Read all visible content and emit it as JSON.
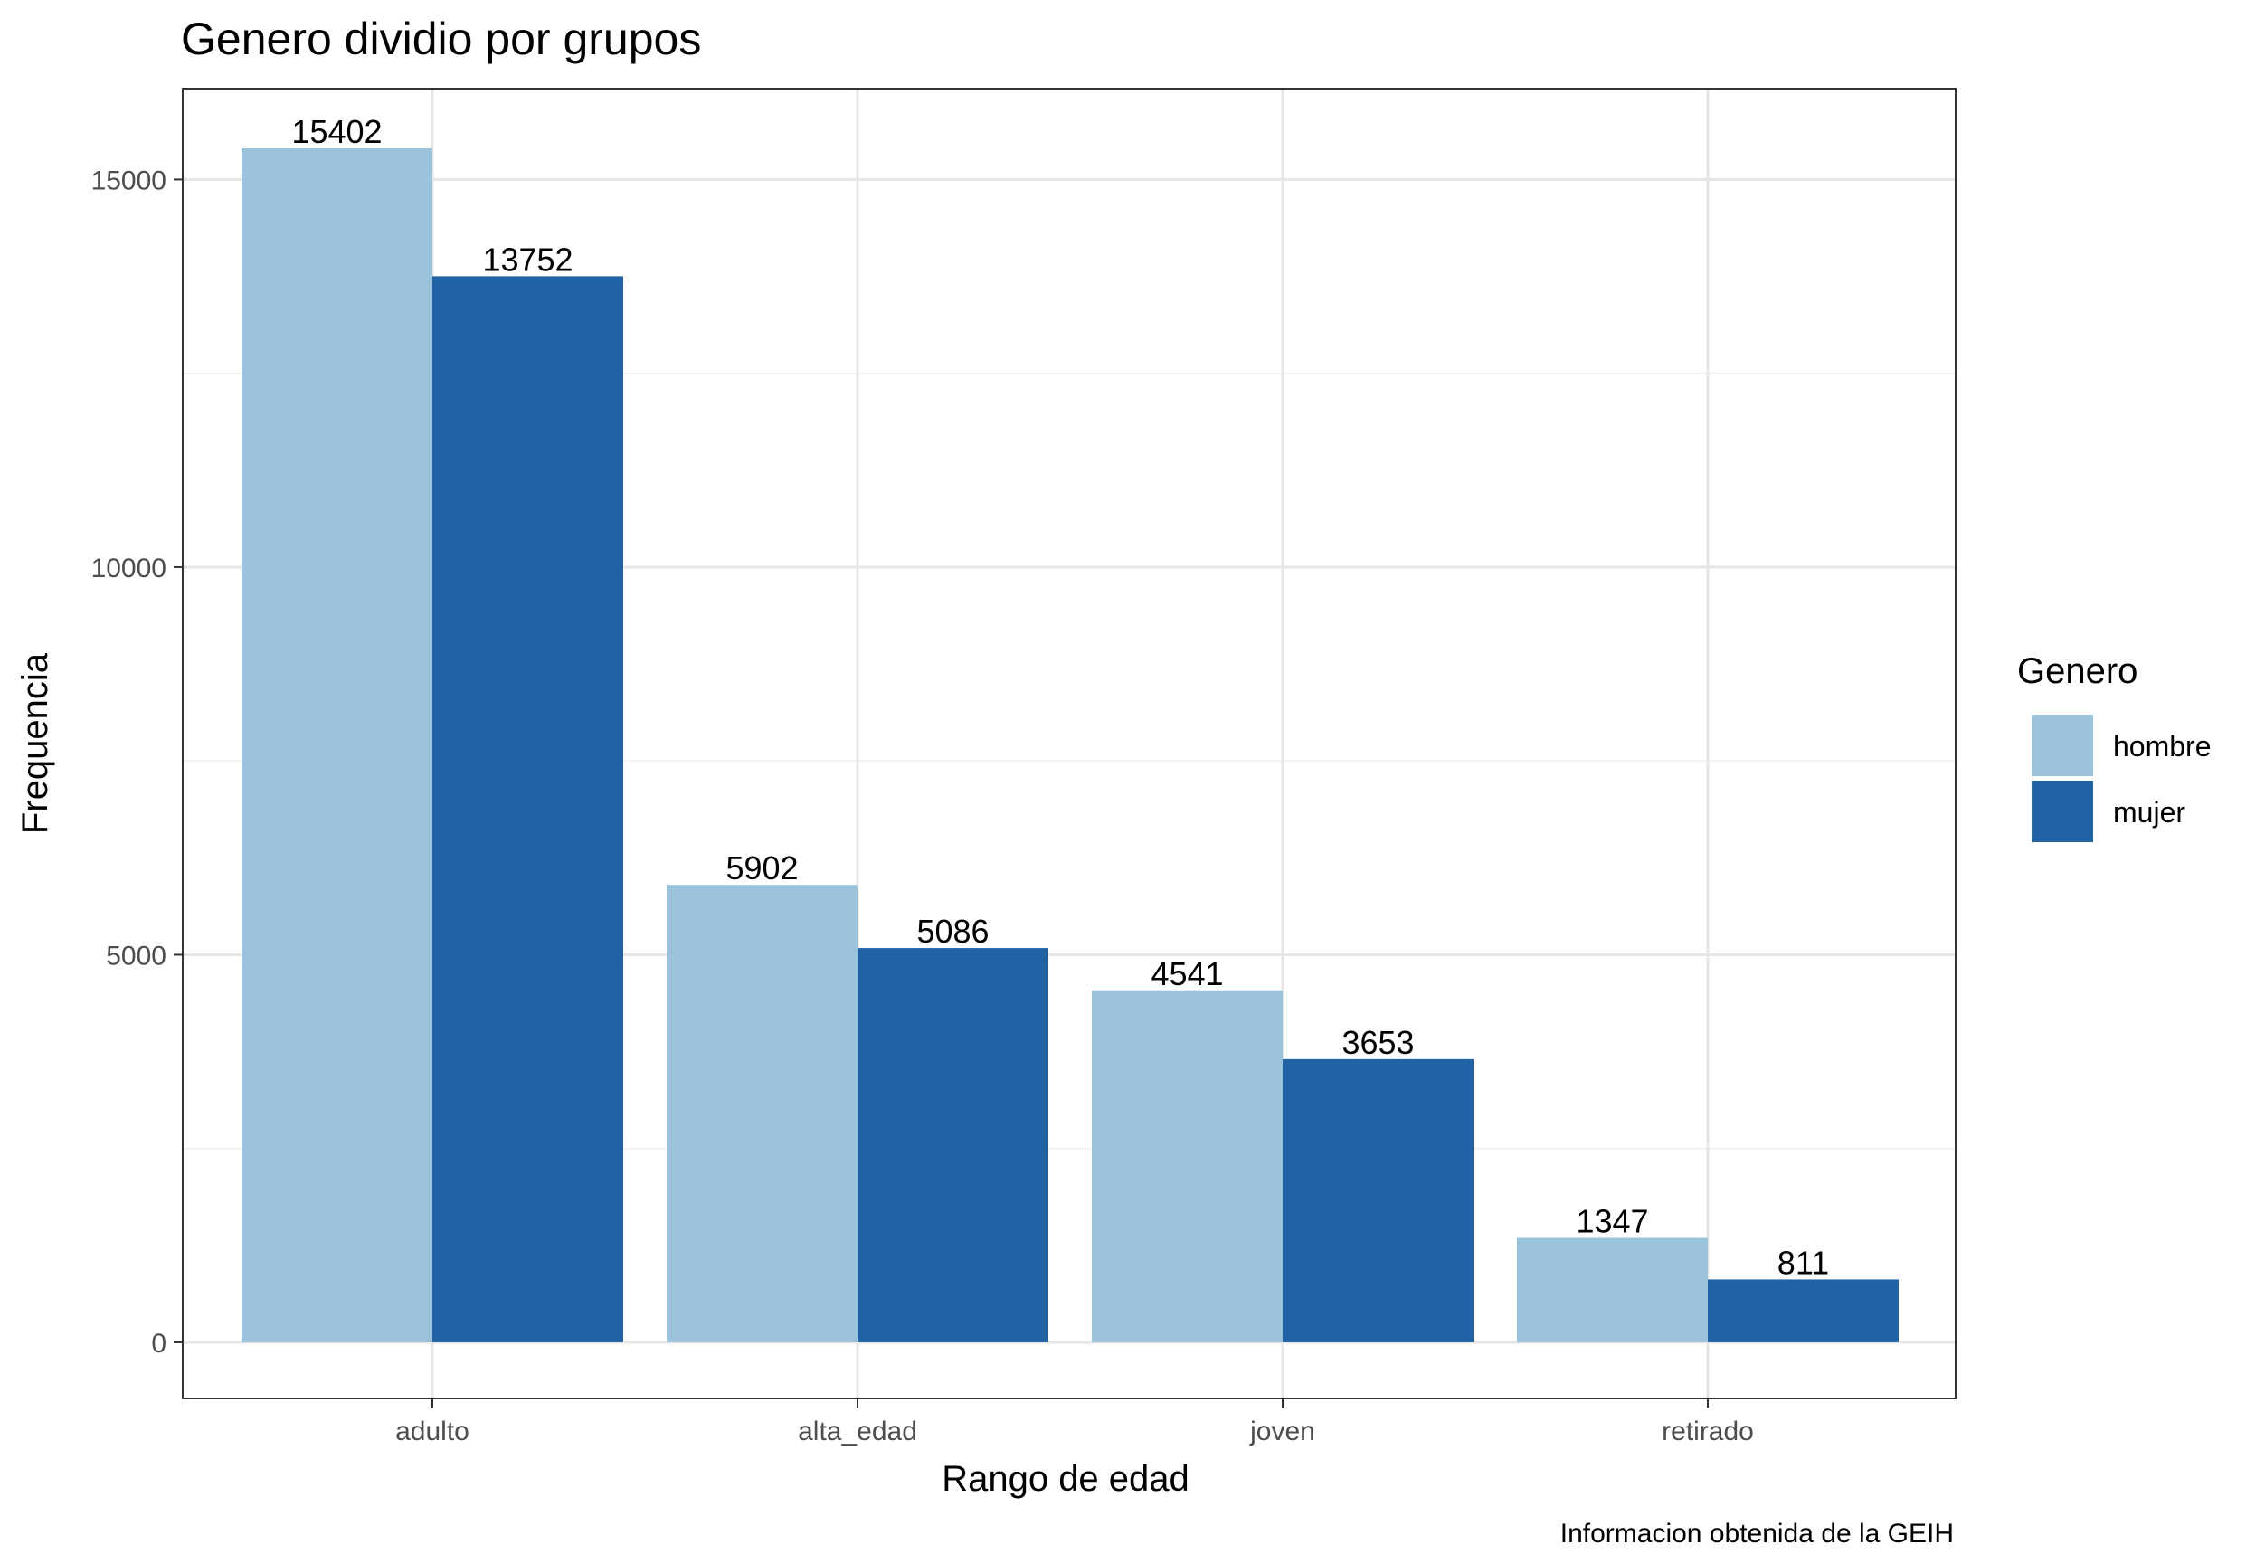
{
  "chart_data": {
    "type": "bar",
    "title": "Genero dividio por grupos",
    "xlabel": "Rango de edad",
    "ylabel": "Frequencia",
    "caption": "Informacion obtenida de la GEIH",
    "categories": [
      "adulto",
      "alta_edad",
      "joven",
      "retirado"
    ],
    "series": [
      {
        "name": "hombre",
        "values": [
          15402,
          5902,
          4541,
          1347
        ],
        "color": "#9ac3db"
      },
      {
        "name": "mujer",
        "values": [
          13752,
          5086,
          3653,
          811
        ],
        "color": "#1f63a5"
      }
    ],
    "ylim": [
      -724,
      16172
    ],
    "yticks": [
      0,
      5000,
      10000,
      15000
    ],
    "ytick_labels": [
      "0",
      "5000",
      "10000",
      "15000"
    ],
    "grid": true,
    "legend": {
      "title": "Genero",
      "position": "right"
    }
  }
}
